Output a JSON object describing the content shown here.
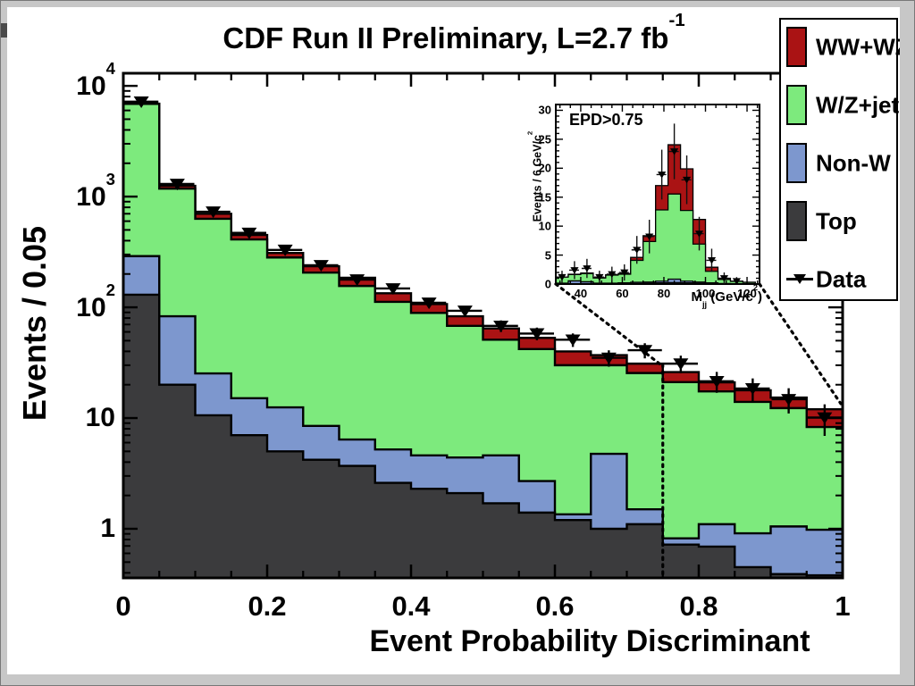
{
  "title": {
    "text": "CDF Run II Preliminary, L=2.7 fb",
    "sup": "-1"
  },
  "axes": {
    "x": {
      "label": "Event Probability Discriminant"
    },
    "y": {
      "label": "Events / 0.05"
    }
  },
  "legend": {
    "items": [
      {
        "label": "WW+WZ",
        "color": "#aa1314",
        "type": "box"
      },
      {
        "label": "W/Z+jets",
        "color": "#7dea7d",
        "type": "box"
      },
      {
        "label": "Non-W",
        "color": "#7d97ce",
        "type": "box"
      },
      {
        "label": "Top",
        "color": "#3b3b3d",
        "type": "box"
      },
      {
        "label": "Data",
        "color": "#000000",
        "type": "marker"
      }
    ]
  },
  "inset": {
    "label": "EPD>0.75",
    "xlabel": {
      "pre": "M",
      "sub": "jj",
      "mid": " (GeV/c",
      "sup": "2",
      "post": ")"
    },
    "ylabel": {
      "pre": "Events / 6 GeV/c",
      "sup": "2"
    }
  },
  "chart_data": [
    {
      "id": "main",
      "type": "bar",
      "stacked": true,
      "title": "CDF Run II Preliminary, L=2.7 fb^-1",
      "xlabel": "Event Probability Discriminant",
      "ylabel": "Events / 0.05",
      "x_scale": "linear",
      "y_scale": "log",
      "xlim": [
        0,
        1
      ],
      "ylim": [
        0.36,
        13000
      ],
      "bin_width": 0.05,
      "bin_edges": [
        0,
        0.05,
        0.1,
        0.15,
        0.2,
        0.25,
        0.3,
        0.35,
        0.4,
        0.45,
        0.5,
        0.55,
        0.6,
        0.65,
        0.7,
        0.75,
        0.8,
        0.85,
        0.9,
        0.95,
        1
      ],
      "series": [
        {
          "name": "Top",
          "color": "#3b3b3d",
          "values": [
            130,
            20,
            10.6,
            7,
            5,
            4.2,
            3.7,
            2.6,
            2.3,
            2.1,
            1.7,
            1.4,
            1.2,
            1,
            1.1,
            0.72,
            0.69,
            0.45,
            0.39,
            0.38
          ]
        },
        {
          "name": "Non-W",
          "color": "#7d97ce",
          "values": [
            160,
            63,
            14.7,
            8.1,
            7.5,
            4.3,
            2.7,
            2.6,
            2.3,
            2.3,
            2.9,
            1.3,
            0.15,
            3.75,
            0.4,
            0.1,
            0.41,
            0.46,
            0.66,
            0.6
          ]
        },
        {
          "name": "W/Z+jets",
          "color": "#7dea7d",
          "values": [
            6580,
            1097,
            604.7,
            394.9,
            269.5,
            197.5,
            149.6,
            106.8,
            84.4,
            63.6,
            46.4,
            39.3,
            28.65,
            25.25,
            24,
            20.28,
            16.3,
            13.09,
            11.25,
            7.32
          ]
        },
        {
          "name": "WW+WZ",
          "color": "#aa1314",
          "values": [
            30,
            70,
            70,
            40,
            28,
            29,
            29,
            22,
            18,
            15,
            13.5,
            11,
            10,
            7,
            5.5,
            4.9,
            3.6,
            3.8,
            3,
            3.7
          ]
        }
      ],
      "data_series": {
        "name": "Data",
        "marker": "triangle-down",
        "values": [
          7200,
          1300,
          730,
          470,
          330,
          240,
          178,
          148,
          110,
          93,
          68,
          58,
          51,
          35,
          41,
          31,
          21.5,
          18.5,
          14.8,
          10.1
        ],
        "errors": [
          85,
          36,
          27,
          21.7,
          18.2,
          15.5,
          13.3,
          12.2,
          10.5,
          9.6,
          8.2,
          7.6,
          7.1,
          5.9,
          6.4,
          5.6,
          4.6,
          4.3,
          3.8,
          3.2
        ]
      },
      "x_ticks": {
        "values": [
          0,
          0.2,
          0.4,
          0.6,
          0.8,
          1
        ],
        "labels": [
          "0",
          "0.2",
          "0.4",
          "0.6",
          "0.8",
          "1"
        ],
        "minor_step": 0.05
      },
      "y_ticks": {
        "values": [
          1,
          10,
          100,
          1000,
          10000
        ],
        "labels": [
          {
            "base": "1",
            "exp": ""
          },
          {
            "base": "10",
            "exp": ""
          },
          {
            "base": "10",
            "exp": "2"
          },
          {
            "base": "10",
            "exp": "3"
          },
          {
            "base": "10",
            "exp": "4"
          }
        ]
      },
      "cut_line_x": 0.75
    },
    {
      "id": "inset",
      "type": "bar",
      "stacked": true,
      "title": "EPD>0.75",
      "xlabel": "M_jj (GeV/c^2)",
      "ylabel": "Events / 6 GeV/c^2",
      "x_scale": "linear",
      "y_scale": "linear",
      "xlim": [
        28,
        126
      ],
      "ylim": [
        0,
        31
      ],
      "bin_width": 6,
      "bin_edges": [
        28,
        34,
        40,
        46,
        52,
        58,
        64,
        70,
        76,
        82,
        88,
        94,
        100,
        106,
        112,
        118,
        124
      ],
      "series": [
        {
          "name": "Top",
          "color": "#3b3b3d",
          "values": [
            0.05,
            0.05,
            0.1,
            0.05,
            0.05,
            0.1,
            0.1,
            0.15,
            0.2,
            0.25,
            0.2,
            0.15,
            0.1,
            0.05,
            0.05,
            0.03
          ]
        },
        {
          "name": "Non-W",
          "color": "#7d97ce",
          "values": [
            0.1,
            0.5,
            0.3,
            0.1,
            0.1,
            0.1,
            0.2,
            0.2,
            0.3,
            0.6,
            0.3,
            0.2,
            0.1,
            0.05,
            0.02,
            0.02
          ]
        },
        {
          "name": "W/Z+jets",
          "color": "#7dea7d",
          "values": [
            1.05,
            1.1,
            1.4,
            0.9,
            1.4,
            1.5,
            3.8,
            7,
            12.3,
            14.7,
            12.2,
            6.55,
            2,
            0.7,
            0.4,
            0.25
          ]
        },
        {
          "name": "WW+WZ",
          "color": "#aa1314",
          "values": [
            0,
            0.05,
            0.1,
            0.05,
            0.05,
            0.1,
            0.5,
            1,
            4.2,
            8.5,
            7.2,
            4.25,
            0.7,
            0.2,
            0.03,
            0
          ]
        }
      ],
      "data_series": {
        "name": "Data",
        "marker": "triangle-down",
        "values": [
          1.2,
          2.4,
          2.7,
          1.2,
          1.7,
          2,
          5.9,
          8.2,
          18.9,
          22.9,
          18,
          8.7,
          4.1,
          1,
          0.5,
          null
        ],
        "errors": [
          1.1,
          1.55,
          1.65,
          1.1,
          1.3,
          1.4,
          2.4,
          2.9,
          4.3,
          4.8,
          4.2,
          2.9,
          2,
          1,
          0.7,
          0
        ]
      },
      "x_ticks": {
        "values": [
          40,
          60,
          80,
          100,
          120
        ],
        "labels": [
          "40",
          "60",
          "80",
          "100",
          "120"
        ],
        "minor_step": 5
      },
      "y_ticks": {
        "values": [
          0,
          5,
          10,
          15,
          20,
          25,
          30
        ],
        "labels": [
          "0",
          "5",
          "10",
          "15",
          "20",
          "25",
          "30"
        ],
        "minor_step": 1
      }
    }
  ]
}
